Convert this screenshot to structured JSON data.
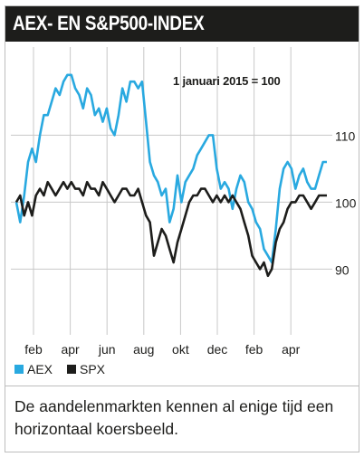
{
  "header": {
    "title": "AEX- EN S&P500-INDEX"
  },
  "caption": {
    "text": "De aandelenmarkten kennen al enige tijd een horizontaal koersbeeld."
  },
  "colors": {
    "aex": "#29a9e0",
    "spx": "#1d1d1b",
    "grid": "#c8c8c8",
    "title_bg": "#1d1d1b"
  },
  "chart_data": {
    "type": "line",
    "annotation": "1 januari 2015 = 100",
    "x_ticks": [
      "feb",
      "apr",
      "jun",
      "aug",
      "okt",
      "dec",
      "feb",
      "apr"
    ],
    "y_ticks": [
      90,
      100,
      110
    ],
    "ylim": [
      81,
      121
    ],
    "grid": true,
    "legend": "bottom-left",
    "series": [
      {
        "name": "AEX",
        "color": "#29a9e0",
        "values": [
          100,
          97,
          101,
          106,
          108,
          106,
          110,
          113,
          113,
          115,
          117,
          116,
          118,
          119,
          119,
          117,
          116,
          114,
          117,
          116,
          113,
          114,
          112,
          114,
          111,
          110,
          113,
          117,
          115,
          118,
          118,
          117,
          118,
          112,
          106,
          104,
          103,
          101,
          102,
          97,
          99,
          104,
          100,
          103,
          104,
          105,
          107,
          108,
          109,
          110,
          110,
          105,
          102,
          103,
          102,
          99,
          102,
          104,
          103,
          100,
          99,
          97,
          96,
          93,
          92,
          91,
          96,
          102,
          105,
          106,
          105,
          102,
          104,
          105,
          103,
          102,
          102,
          104,
          106,
          106
        ]
      },
      {
        "name": "SPX",
        "color": "#1d1d1b",
        "values": [
          100,
          101,
          98,
          100,
          98,
          101,
          102,
          101,
          103,
          102,
          101,
          102,
          103,
          102,
          103,
          102,
          102,
          101,
          103,
          102,
          102,
          101,
          103,
          102,
          101,
          100,
          101,
          102,
          102,
          101,
          101,
          102,
          100,
          98,
          97,
          92,
          94,
          96,
          95,
          93,
          91,
          94,
          96,
          98,
          100,
          101,
          101,
          102,
          102,
          101,
          100,
          101,
          100,
          101,
          100,
          101,
          100,
          99,
          97,
          95,
          92,
          91,
          90,
          91,
          89,
          90,
          94,
          96,
          97,
          99,
          100,
          100,
          101,
          101,
          100,
          99,
          100,
          101,
          101,
          101
        ]
      }
    ]
  }
}
